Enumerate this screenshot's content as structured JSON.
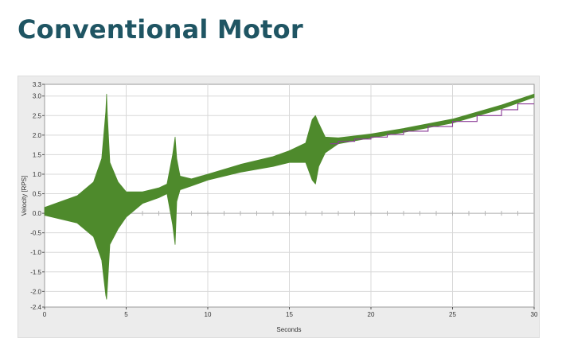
{
  "page": {
    "title": "Conventional Motor"
  },
  "colors": {
    "velocity": "#4e8a2c",
    "command": "#8a3a96",
    "title": "#1f5563"
  },
  "chart_data": {
    "type": "line",
    "title": "Conventional Motor",
    "xlabel": "Seconds",
    "ylabel": "Velocity [RPS]",
    "xlim": [
      0,
      30
    ],
    "ylim": [
      -2.4,
      3.3
    ],
    "x_ticks": [
      0,
      5,
      10,
      15,
      20,
      25,
      30
    ],
    "x_tick_labels": [
      "0",
      "5",
      "10",
      "15",
      "20",
      "25",
      "30"
    ],
    "y_ticks": [
      -2.4,
      -2.0,
      -1.5,
      -1.0,
      -0.5,
      0.0,
      0.5,
      1.0,
      1.5,
      2.0,
      2.5,
      3.0,
      3.3
    ],
    "y_tick_labels": [
      "-2.4",
      "-2.0",
      "-1.5",
      "-1.0",
      "-0.5",
      "0.0",
      "0.5",
      "1.0",
      "1.5",
      "2.0",
      "2.5",
      "3.0",
      "3.3"
    ],
    "grid": true,
    "legend": "none",
    "series": [
      {
        "x": [
          0,
          2,
          3,
          3.5,
          3.75,
          3.8,
          3.85,
          4.0,
          4.5,
          5,
          6,
          7,
          7.5,
          7.85,
          8.0,
          8.1,
          8.3,
          9,
          10,
          12,
          14,
          15,
          16,
          16.4,
          16.6,
          16.8,
          17.2,
          18,
          20,
          22,
          25,
          28,
          30
        ],
        "upper": [
          0.15,
          0.45,
          0.8,
          1.4,
          2.6,
          3.05,
          2.5,
          1.3,
          0.8,
          0.55,
          0.55,
          0.65,
          0.75,
          1.5,
          1.95,
          1.4,
          0.95,
          0.88,
          1.0,
          1.25,
          1.45,
          1.6,
          1.8,
          2.4,
          2.5,
          2.3,
          1.95,
          1.93,
          2.03,
          2.17,
          2.41,
          2.77,
          3.05
        ],
        "lower": [
          -0.05,
          -0.25,
          -0.6,
          -1.2,
          -2.1,
          -2.2,
          -1.9,
          -0.8,
          -0.4,
          -0.1,
          0.25,
          0.4,
          0.5,
          -0.3,
          -0.8,
          0.3,
          0.6,
          0.7,
          0.85,
          1.05,
          1.2,
          1.3,
          1.3,
          0.85,
          0.75,
          1.2,
          1.55,
          1.78,
          1.93,
          2.07,
          2.31,
          2.67,
          2.97
        ]
      },
      {
        "x": [
          17.5,
          18.0,
          18.0,
          19.0,
          19.0,
          20.0,
          20.0,
          21.0,
          21.0,
          22.0,
          22.0,
          23.5,
          23.5,
          25.0,
          25.0,
          26.5,
          26.5,
          28.0,
          28.0,
          29.0,
          29.0,
          30.0
        ],
        "values": [
          1.78,
          1.78,
          1.84,
          1.84,
          1.9,
          1.9,
          1.95,
          1.95,
          2.02,
          2.02,
          2.1,
          2.1,
          2.22,
          2.22,
          2.35,
          2.35,
          2.5,
          2.5,
          2.65,
          2.65,
          2.8,
          2.8
        ]
      }
    ]
  }
}
